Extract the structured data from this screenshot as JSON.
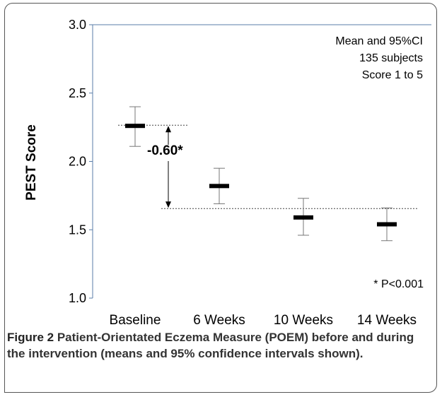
{
  "chart_data": {
    "type": "scatter",
    "ylabel": "PEST Score",
    "xlabel": "",
    "ylim": [
      1.0,
      3.0
    ],
    "yticks": [
      "1.0",
      "1.5",
      "2.0",
      "2.5",
      "3.0"
    ],
    "categories": [
      "Baseline",
      "6 Weeks",
      "10 Weeks",
      "14 Weeks"
    ],
    "series": [
      {
        "means": [
          2.26,
          1.82,
          1.59,
          1.54
        ],
        "ci_upper": [
          2.4,
          1.95,
          1.73,
          1.66
        ],
        "ci_lower": [
          2.11,
          1.69,
          1.46,
          1.42
        ]
      }
    ],
    "info_lines": [
      "Mean and 95%CI",
      "135 subjects",
      "Score 1 to 5"
    ],
    "reference_lines": [
      2.265,
      1.655
    ],
    "difference_label": "-0.60*",
    "footnote": "* P<0.001",
    "grid": false
  },
  "caption": {
    "label": "Figure 2",
    "text": " Patient-Orientated Eczema Measure (POEM) before and during the intervention (means and 95% confidence intervals shown)."
  }
}
